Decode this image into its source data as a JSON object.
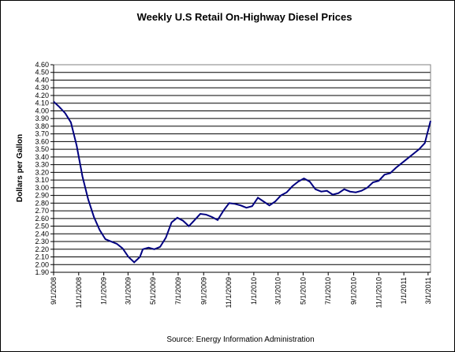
{
  "chart_data": {
    "type": "line",
    "title": "Weekly U.S Retail On-Highway Diesel Prices",
    "y_label": "Dollars per Gallon",
    "source": "Source:  Energy Information Administration",
    "x": [
      "2008-09-01",
      "2008-09-15",
      "2008-09-29",
      "2008-10-13",
      "2008-10-27",
      "2008-11-10",
      "2008-11-24",
      "2008-12-08",
      "2008-12-22",
      "2009-01-05",
      "2009-01-19",
      "2009-02-02",
      "2009-02-16",
      "2009-03-02",
      "2009-03-16",
      "2009-03-30",
      "2009-04-06",
      "2009-04-20",
      "2009-05-04",
      "2009-05-18",
      "2009-06-01",
      "2009-06-15",
      "2009-06-29",
      "2009-07-13",
      "2009-07-27",
      "2009-08-10",
      "2009-08-24",
      "2009-09-07",
      "2009-09-21",
      "2009-10-05",
      "2009-10-19",
      "2009-11-02",
      "2009-11-16",
      "2009-11-30",
      "2009-12-14",
      "2009-12-28",
      "2010-01-11",
      "2010-01-25",
      "2010-02-08",
      "2010-02-22",
      "2010-03-08",
      "2010-03-22",
      "2010-04-05",
      "2010-04-19",
      "2010-05-03",
      "2010-05-17",
      "2010-05-31",
      "2010-06-14",
      "2010-06-28",
      "2010-07-12",
      "2010-07-26",
      "2010-08-09",
      "2010-08-23",
      "2010-09-06",
      "2010-09-20",
      "2010-10-04",
      "2010-10-18",
      "2010-11-01",
      "2010-11-15",
      "2010-11-29",
      "2010-12-13",
      "2010-12-27",
      "2011-01-10",
      "2011-01-24",
      "2011-02-07",
      "2011-02-21",
      "2011-03-07"
    ],
    "series": [
      {
        "name": "Diesel",
        "color": "#000080",
        "values": [
          4.12,
          4.05,
          3.97,
          3.85,
          3.55,
          3.15,
          2.85,
          2.62,
          2.45,
          2.33,
          2.3,
          2.27,
          2.21,
          2.1,
          2.03,
          2.1,
          2.2,
          2.22,
          2.2,
          2.23,
          2.35,
          2.55,
          2.61,
          2.57,
          2.5,
          2.58,
          2.66,
          2.65,
          2.62,
          2.58,
          2.7,
          2.8,
          2.79,
          2.77,
          2.74,
          2.76,
          2.87,
          2.82,
          2.77,
          2.82,
          2.9,
          2.94,
          3.02,
          3.08,
          3.12,
          3.08,
          2.98,
          2.95,
          2.96,
          2.91,
          2.93,
          2.98,
          2.95,
          2.94,
          2.96,
          3.0,
          3.07,
          3.09,
          3.17,
          3.19,
          3.26,
          3.32,
          3.38,
          3.44,
          3.5,
          3.58,
          3.87
        ]
      }
    ],
    "xlim": [
      "2008-09-01",
      "2011-03-07"
    ],
    "xticks": [
      {
        "value": "2008-09-01",
        "label": "9/1/2008"
      },
      {
        "value": "2008-11-01",
        "label": "11/1/2008"
      },
      {
        "value": "2009-01-01",
        "label": "1/1/2009"
      },
      {
        "value": "2009-03-01",
        "label": "3/1/2009"
      },
      {
        "value": "2009-05-01",
        "label": "5/1/2009"
      },
      {
        "value": "2009-07-01",
        "label": "7/1/2009"
      },
      {
        "value": "2009-09-01",
        "label": "9/1/2009"
      },
      {
        "value": "2009-11-01",
        "label": "11/1/2009"
      },
      {
        "value": "2010-01-01",
        "label": "1/1/2010"
      },
      {
        "value": "2010-03-01",
        "label": "3/1/2010"
      },
      {
        "value": "2010-05-01",
        "label": "5/1/2010"
      },
      {
        "value": "2010-07-01",
        "label": "7/1/2010"
      },
      {
        "value": "2010-09-01",
        "label": "9/1/2010"
      },
      {
        "value": "2010-11-01",
        "label": "11/1/2010"
      },
      {
        "value": "2011-01-01",
        "label": "1/1/2011"
      },
      {
        "value": "2011-03-01",
        "label": "3/1/2011"
      }
    ],
    "ylim": [
      1.9,
      4.6
    ],
    "yticks": [
      {
        "value": 1.9,
        "label": "1.90"
      },
      {
        "value": 2.0,
        "label": "2.00"
      },
      {
        "value": 2.1,
        "label": "2.10"
      },
      {
        "value": 2.2,
        "label": "2.20"
      },
      {
        "value": 2.3,
        "label": "2.30"
      },
      {
        "value": 2.4,
        "label": "2.40"
      },
      {
        "value": 2.5,
        "label": "2.50"
      },
      {
        "value": 2.6,
        "label": "2.60"
      },
      {
        "value": 2.7,
        "label": "2.70"
      },
      {
        "value": 2.8,
        "label": "2.80"
      },
      {
        "value": 2.9,
        "label": "2.90"
      },
      {
        "value": 3.0,
        "label": "3.00"
      },
      {
        "value": 3.1,
        "label": "3.10"
      },
      {
        "value": 3.2,
        "label": "3.20"
      },
      {
        "value": 3.3,
        "label": "3.30"
      },
      {
        "value": 3.4,
        "label": "3.40"
      },
      {
        "value": 3.5,
        "label": "3.50"
      },
      {
        "value": 3.6,
        "label": "3.60"
      },
      {
        "value": 3.7,
        "label": "3.70"
      },
      {
        "value": 3.8,
        "label": "3.80"
      },
      {
        "value": 3.9,
        "label": "3.90"
      },
      {
        "value": 4.0,
        "label": "4.00"
      },
      {
        "value": 4.1,
        "label": "4.10"
      },
      {
        "value": 4.2,
        "label": "4.20"
      },
      {
        "value": 4.3,
        "label": "4.30"
      },
      {
        "value": 4.4,
        "label": "4.40"
      },
      {
        "value": 4.5,
        "label": "4.50"
      },
      {
        "value": 4.6,
        "label": "4.60"
      }
    ],
    "grid": true
  }
}
